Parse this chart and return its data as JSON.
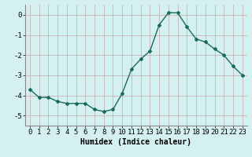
{
  "x": [
    0,
    1,
    2,
    3,
    4,
    5,
    6,
    7,
    8,
    9,
    10,
    11,
    12,
    13,
    14,
    15,
    16,
    17,
    18,
    19,
    20,
    21,
    22,
    23
  ],
  "y": [
    -3.7,
    -4.1,
    -4.1,
    -4.3,
    -4.4,
    -4.4,
    -4.4,
    -4.7,
    -4.8,
    -4.7,
    -3.9,
    -2.7,
    -2.2,
    -1.8,
    -0.5,
    0.1,
    0.1,
    -0.6,
    -1.2,
    -1.35,
    -1.7,
    -2.0,
    -2.55,
    -3.0
  ],
  "xlabel": "Humidex (Indice chaleur)",
  "ylabel": "",
  "xlim": [
    -0.5,
    23.5
  ],
  "ylim": [
    -5.5,
    0.5
  ],
  "yticks": [
    0,
    -1,
    -2,
    -3,
    -4,
    -5
  ],
  "xticks": [
    0,
    1,
    2,
    3,
    4,
    5,
    6,
    7,
    8,
    9,
    10,
    11,
    12,
    13,
    14,
    15,
    16,
    17,
    18,
    19,
    20,
    21,
    22,
    23
  ],
  "line_color": "#1a6b5a",
  "marker": "D",
  "marker_size": 2.0,
  "bg_color": "#d4f0f0",
  "grid_color": "#c8a8a8",
  "xlabel_fontsize": 7,
  "tick_fontsize": 6.5
}
